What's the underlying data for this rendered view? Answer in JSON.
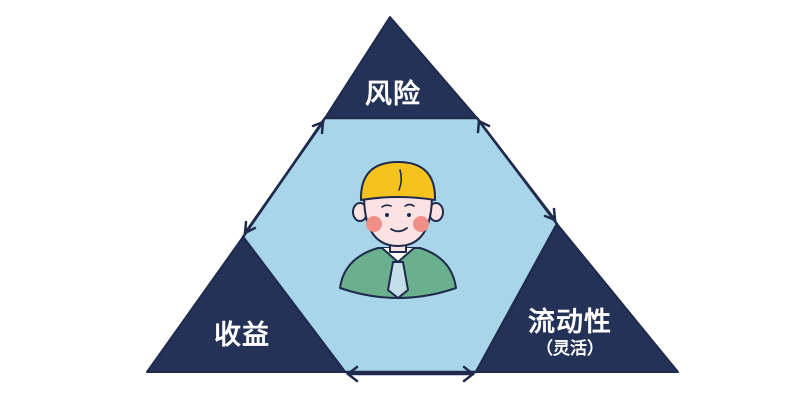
{
  "diagram": {
    "corners": {
      "top": {
        "label": "风险"
      },
      "bottom_left": {
        "label": "收益"
      },
      "bottom_right": {
        "label": "流动性",
        "sublabel": "（灵活）"
      }
    },
    "center": {
      "icon": "person-with-tie-icon"
    },
    "colors": {
      "corner_fill": "#253257",
      "center_fill": "#a8d5e8",
      "outline": "#1f2a4c",
      "skin": "#fbe3e4",
      "hair": "#f6c21d",
      "cheeks": "#f08e88",
      "shirt": "#6ab08e"
    }
  }
}
